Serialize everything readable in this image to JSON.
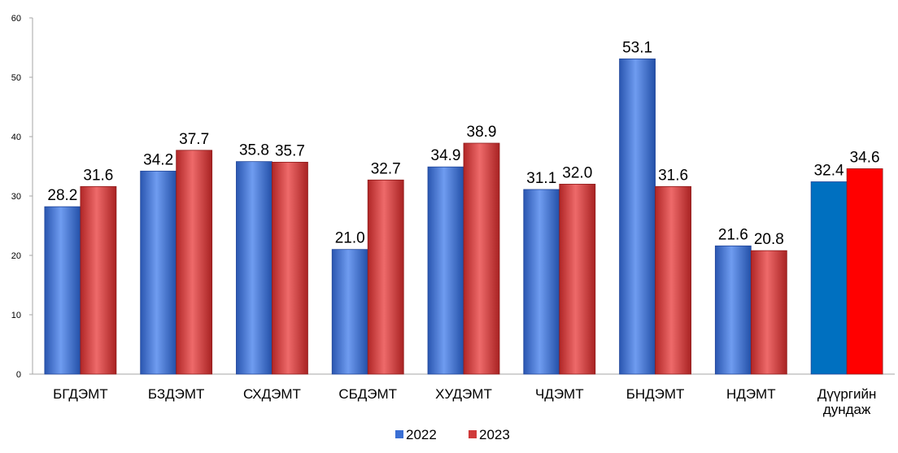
{
  "chart_data": {
    "type": "bar",
    "title": "",
    "xlabel": "",
    "ylabel": "",
    "ylim": [
      0,
      60
    ],
    "yticks": [
      0,
      10,
      20,
      30,
      40,
      50,
      60
    ],
    "grid": false,
    "legend_position": "bottom",
    "categories": [
      "БГДЭМТ",
      "БЗДЭМТ",
      "СХДЭМТ",
      "СБДЭМТ",
      "ХУДЭМТ",
      "ЧДЭМТ",
      "БНДЭМТ",
      "НДЭМТ",
      "Дүүргийн дундаж"
    ],
    "series": [
      {
        "name": "2022",
        "color": "#3a6fd4",
        "values": [
          28.2,
          34.2,
          35.8,
          21.0,
          34.9,
          31.1,
          53.1,
          21.6,
          32.4
        ],
        "value_labels": [
          "28.2",
          "34.2",
          "35.8",
          "21.0",
          "34.9",
          "31.1",
          "53.1",
          "21.6",
          "32.4"
        ]
      },
      {
        "name": "2023",
        "color": "#d03a3a",
        "values": [
          31.6,
          37.7,
          35.7,
          32.7,
          38.9,
          32.0,
          31.6,
          20.8,
          34.6
        ],
        "value_labels": [
          "31.6",
          "37.7",
          "35.7",
          "32.7",
          "38.9",
          "32.0",
          "31.6",
          "20.8",
          "34.6"
        ]
      }
    ],
    "highlight_colors": {
      "2022": "#0070c0",
      "2023": "#ff0000"
    }
  }
}
